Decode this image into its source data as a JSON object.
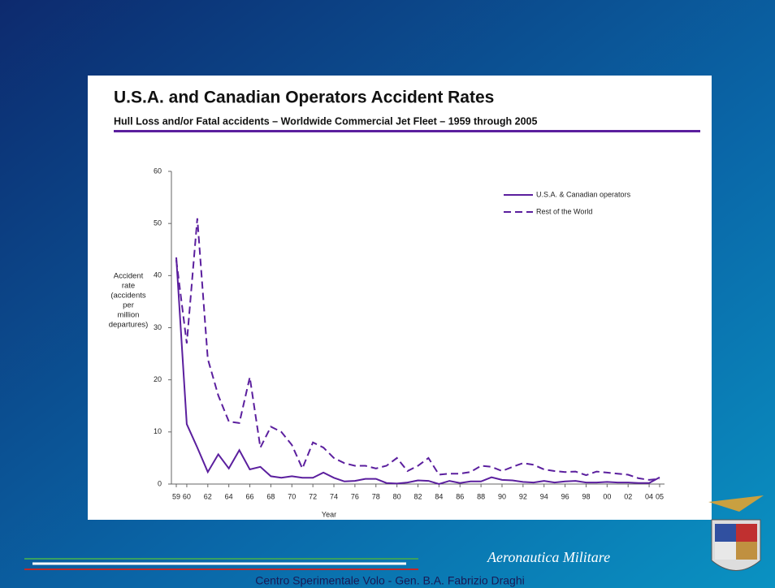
{
  "chart_data": {
    "type": "line",
    "title": "U.S.A. and Canadian Operators Accident Rates",
    "subtitle": "Hull Loss and/or Fatal accidents – Worldwide Commercial Jet Fleet – 1959 through 2005",
    "y_label": [
      "Accident",
      "rate",
      "(accidents",
      "per",
      "million",
      "departures)"
    ],
    "x_label": "Year",
    "categories": [
      "59",
      "60",
      null,
      "62",
      null,
      "64",
      null,
      "66",
      null,
      "68",
      null,
      "70",
      null,
      "72",
      null,
      "74",
      null,
      "76",
      null,
      "78",
      null,
      "80",
      null,
      "82",
      null,
      "84",
      null,
      "86",
      null,
      "88",
      null,
      "90",
      null,
      "92",
      null,
      "94",
      null,
      "96",
      null,
      "98",
      null,
      "00",
      null,
      "02",
      null,
      "04",
      "05"
    ],
    "ylim": [
      0,
      60
    ],
    "yticks": [
      0,
      10,
      20,
      30,
      40,
      50,
      60
    ],
    "legend": "upper right",
    "series": [
      {
        "name": "U.S.A. & Canadian operators",
        "color": "#5b1f9e",
        "line_style": "solid",
        "values": [
          43.5,
          11.5,
          7,
          2.3,
          5.7,
          3,
          6.5,
          2.8,
          3.3,
          1.5,
          1.2,
          1.5,
          1.2,
          1.2,
          2.2,
          1.2,
          0.5,
          0.6,
          1,
          1,
          0.2,
          0.1,
          0.3,
          0.7,
          0.6,
          0,
          0.6,
          0.2,
          0.5,
          0.5,
          1.3,
          0.8,
          0.7,
          0.4,
          0.3,
          0.6,
          0.3,
          0.5,
          0.6,
          0.3,
          0.3,
          0.4,
          0.3,
          0.3,
          0.2,
          0.2,
          1.3
        ]
      },
      {
        "name": "Rest of the World",
        "color": "#5b1f9e",
        "line_style": "dashed",
        "values": [
          43,
          27,
          51,
          24,
          17,
          12,
          11.7,
          20.5,
          7,
          11,
          10,
          7.5,
          3,
          8,
          7,
          5,
          4,
          3.5,
          3.5,
          3,
          3.5,
          5,
          2.5,
          3.5,
          5,
          1.8,
          2,
          2,
          2.3,
          3.5,
          3.3,
          2.5,
          3.3,
          4,
          3.7,
          2.8,
          2.5,
          2.3,
          2.4,
          1.7,
          2.4,
          2.2,
          2,
          1.8,
          1.1,
          0.8,
          1
        ]
      }
    ]
  },
  "footer": {
    "brand": "Aeronautica Militare",
    "caption": "Centro Sperimentale Volo - Gen. B.A. Fabrizio Draghi"
  }
}
